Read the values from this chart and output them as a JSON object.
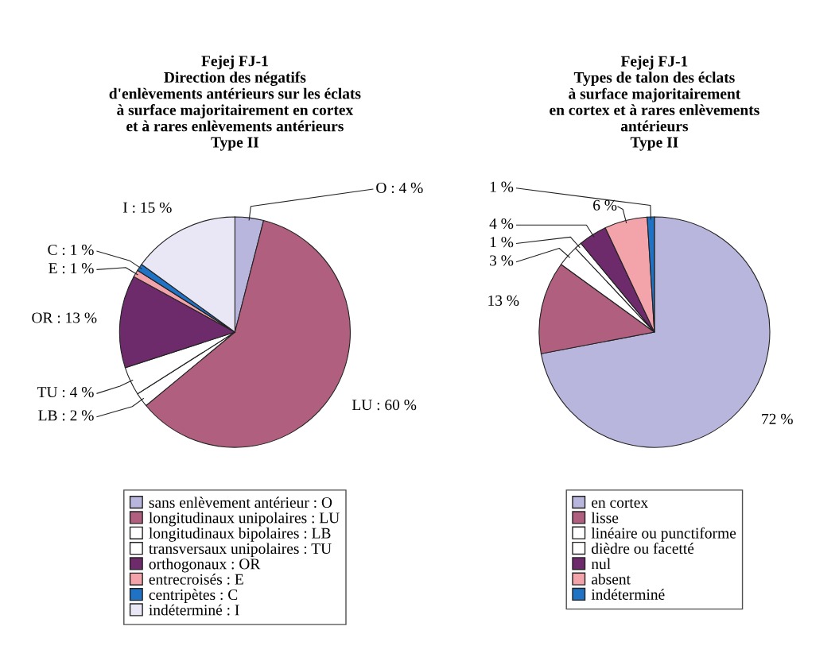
{
  "chart_data": [
    {
      "type": "pie",
      "title": "Fejej FJ-1\nDirection des négatifs\nd'enlèvements antérieurs sur les éclats\nà surface majoritairement en cortex\net à rares enlèvements antérieurs\nType II",
      "categories": [
        "sans enlèvement antérieur : O",
        "longitudinaux unipolaires : LU",
        "longitudinaux bipolaires : LB",
        "transversaux unipolaires : TU",
        "orthogonaux : OR",
        "entrecroisés : E",
        "centripètes : C",
        "indéterminé : I"
      ],
      "values": [
        4,
        60,
        2,
        4,
        13,
        1,
        1,
        15
      ],
      "value_labels": [
        "O : 4 %",
        "LU : 60 %",
        "LB : 2 %",
        "TU : 4 %",
        "OR : 13 %",
        "E : 1 %",
        "C : 1 %",
        "I : 15 %"
      ],
      "colors": [
        "#b9b6dd",
        "#b0607e",
        "#ffffff",
        "#ffffff",
        "#6e2b6c",
        "#f3a3aa",
        "#2073c4",
        "#e9e7f5"
      ],
      "legend": "bottom"
    },
    {
      "type": "pie",
      "title": "Fejej FJ-1\nTypes de talon des éclats\nà surface majoritairement\nen cortex et à rares enlèvements\nantérieurs\nType II",
      "categories": [
        "en cortex",
        "lisse",
        "linéaire ou punctiforme",
        "dièdre ou facetté",
        "nul",
        "absent",
        "indéterminé"
      ],
      "values": [
        72,
        13,
        3,
        1,
        4,
        6,
        1
      ],
      "value_labels": [
        "72 %",
        "13 %",
        "3 %",
        "1 %",
        "4 %",
        "6 %",
        "1 %"
      ],
      "colors": [
        "#b9b6dd",
        "#b0607e",
        "#ffffff",
        "#ffffff",
        "#6e2b6c",
        "#f3a3aa",
        "#2073c4"
      ],
      "legend": "bottom"
    }
  ]
}
